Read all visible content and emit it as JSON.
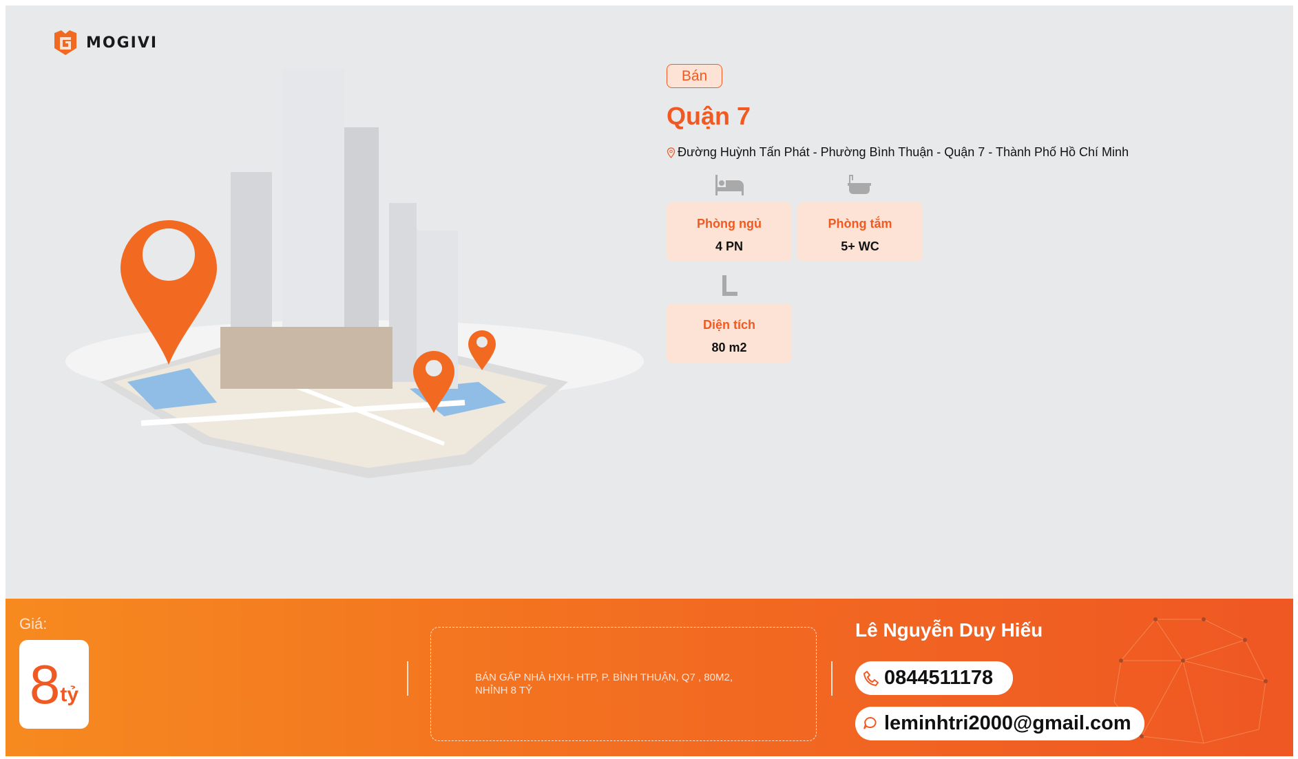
{
  "brand": {
    "name": "MOGIVI",
    "color": "#f05a22"
  },
  "listing": {
    "type_badge": "Bán",
    "title": "Quận 7",
    "address": "Đường Huỳnh Tấn Phát - Phường Bình Thuận - Quận 7 - Thành Phố Hồ Chí Minh",
    "features": [
      {
        "icon": "bed-icon",
        "label": "Phòng ngủ",
        "value": "4 PN"
      },
      {
        "icon": "bathtub-icon",
        "label": "Phòng tắm",
        "value": "5+ WC"
      },
      {
        "icon": "ruler-icon",
        "label": "Diện tích",
        "value": "80 m2"
      }
    ]
  },
  "footer": {
    "price_label": "Giá:",
    "price_value": "8",
    "price_unit": "tỷ",
    "description": "BÁN GẤP NHÀ HXH- HTP, P. BÌNH THUẬN, Q7 , 80M2, NHỈNH 8 TỶ",
    "agent_name": "Lê Nguyễn Duy Hiếu",
    "phone": "0844511178",
    "email": "leminhtri2000@gmail.com"
  }
}
